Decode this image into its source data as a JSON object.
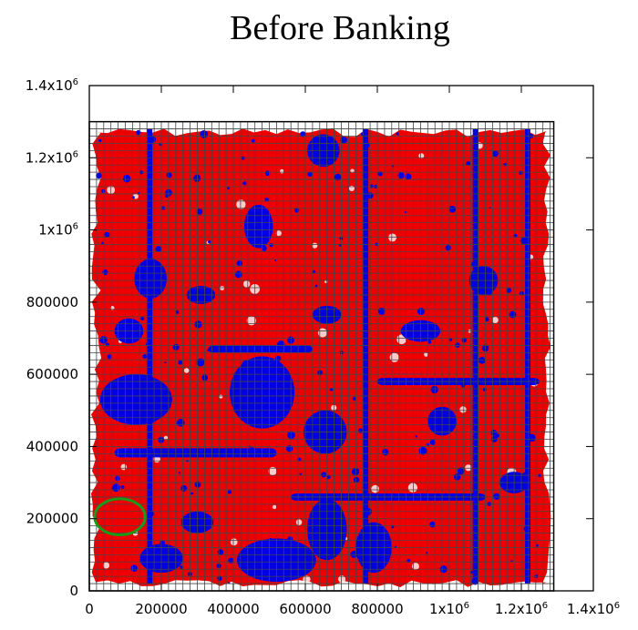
{
  "chart_data": {
    "type": "scatter",
    "title": "Before Banking",
    "xlabel": "",
    "ylabel": "",
    "xlim": [
      0,
      1400000
    ],
    "ylim": [
      0,
      1400000
    ],
    "x_ticks": [
      {
        "value": 0,
        "label": "0"
      },
      {
        "value": 200000,
        "label": "200000"
      },
      {
        "value": 400000,
        "label": "400000"
      },
      {
        "value": 600000,
        "label": "600000"
      },
      {
        "value": 800000,
        "label": "800000"
      },
      {
        "value": 1000000,
        "label": "1x10",
        "sup": "6"
      },
      {
        "value": 1200000,
        "label": "1.2x10",
        "sup": "6"
      },
      {
        "value": 1400000,
        "label": "1.4x10",
        "sup": "6"
      }
    ],
    "y_ticks": [
      {
        "value": 0,
        "label": "0"
      },
      {
        "value": 200000,
        "label": "200000"
      },
      {
        "value": 400000,
        "label": "400000"
      },
      {
        "value": 600000,
        "label": "600000"
      },
      {
        "value": 800000,
        "label": "800000"
      },
      {
        "value": 1000000,
        "label": "1x10",
        "sup": "6"
      },
      {
        "value": 1200000,
        "label": "1.2x10",
        "sup": "6"
      },
      {
        "value": 1400000,
        "label": "1.4x10",
        "sup": "6"
      }
    ],
    "grid": {
      "x": [
        0,
        1290000
      ],
      "y": [
        0,
        1300000
      ],
      "spacing": 20000,
      "color": "#444444"
    },
    "colors": {
      "red": "#ee0000",
      "blue": "#0000e0",
      "green": "#1a9a1a",
      "axis": "#000000"
    },
    "red_region": {
      "x": [
        20000,
        1270000
      ],
      "y": [
        20000,
        1270000
      ]
    },
    "blue_blobs": [
      {
        "cx": 130000,
        "cy": 530000,
        "rx": 100000,
        "ry": 70000
      },
      {
        "cx": 170000,
        "cy": 865000,
        "rx": 45000,
        "ry": 55000
      },
      {
        "cx": 110000,
        "cy": 720000,
        "rx": 40000,
        "ry": 35000
      },
      {
        "cx": 480000,
        "cy": 550000,
        "rx": 90000,
        "ry": 100000
      },
      {
        "cx": 470000,
        "cy": 1010000,
        "rx": 40000,
        "ry": 60000
      },
      {
        "cx": 650000,
        "cy": 1220000,
        "rx": 45000,
        "ry": 45000
      },
      {
        "cx": 655000,
        "cy": 440000,
        "rx": 60000,
        "ry": 60000
      },
      {
        "cx": 660000,
        "cy": 765000,
        "rx": 40000,
        "ry": 25000
      },
      {
        "cx": 660000,
        "cy": 170000,
        "rx": 55000,
        "ry": 85000
      },
      {
        "cx": 790000,
        "cy": 120000,
        "rx": 50000,
        "ry": 70000
      },
      {
        "cx": 1095000,
        "cy": 860000,
        "rx": 40000,
        "ry": 40000
      },
      {
        "cx": 520000,
        "cy": 85000,
        "rx": 110000,
        "ry": 60000
      },
      {
        "cx": 200000,
        "cy": 90000,
        "rx": 60000,
        "ry": 40000
      },
      {
        "cx": 980000,
        "cy": 470000,
        "rx": 40000,
        "ry": 40000
      },
      {
        "cx": 1180000,
        "cy": 300000,
        "rx": 40000,
        "ry": 30000
      },
      {
        "cx": 920000,
        "cy": 720000,
        "rx": 55000,
        "ry": 30000
      },
      {
        "cx": 310000,
        "cy": 820000,
        "rx": 40000,
        "ry": 25000
      },
      {
        "cx": 300000,
        "cy": 190000,
        "rx": 45000,
        "ry": 30000
      }
    ],
    "blue_bands": [
      {
        "x": [
          70000,
          520000
        ],
        "y": [
          370000,
          395000
        ]
      },
      {
        "x": [
          560000,
          1100000
        ],
        "y": [
          250000,
          270000
        ]
      },
      {
        "x": [
          800000,
          1250000
        ],
        "y": [
          570000,
          590000
        ]
      },
      {
        "x": [
          330000,
          620000
        ],
        "y": [
          660000,
          680000
        ]
      }
    ],
    "blue_columns": [
      {
        "x": [
          160000,
          175000
        ],
        "y": [
          20000,
          1280000
        ]
      },
      {
        "x": [
          760000,
          775000
        ],
        "y": [
          20000,
          1280000
        ]
      },
      {
        "x": [
          1065000,
          1080000
        ],
        "y": [
          20000,
          1280000
        ]
      },
      {
        "x": [
          1210000,
          1225000
        ],
        "y": [
          20000,
          1280000
        ]
      }
    ],
    "annotation_ellipse": {
      "cx": 85000,
      "cy": 205000,
      "rx": 70000,
      "ry": 50000
    }
  }
}
